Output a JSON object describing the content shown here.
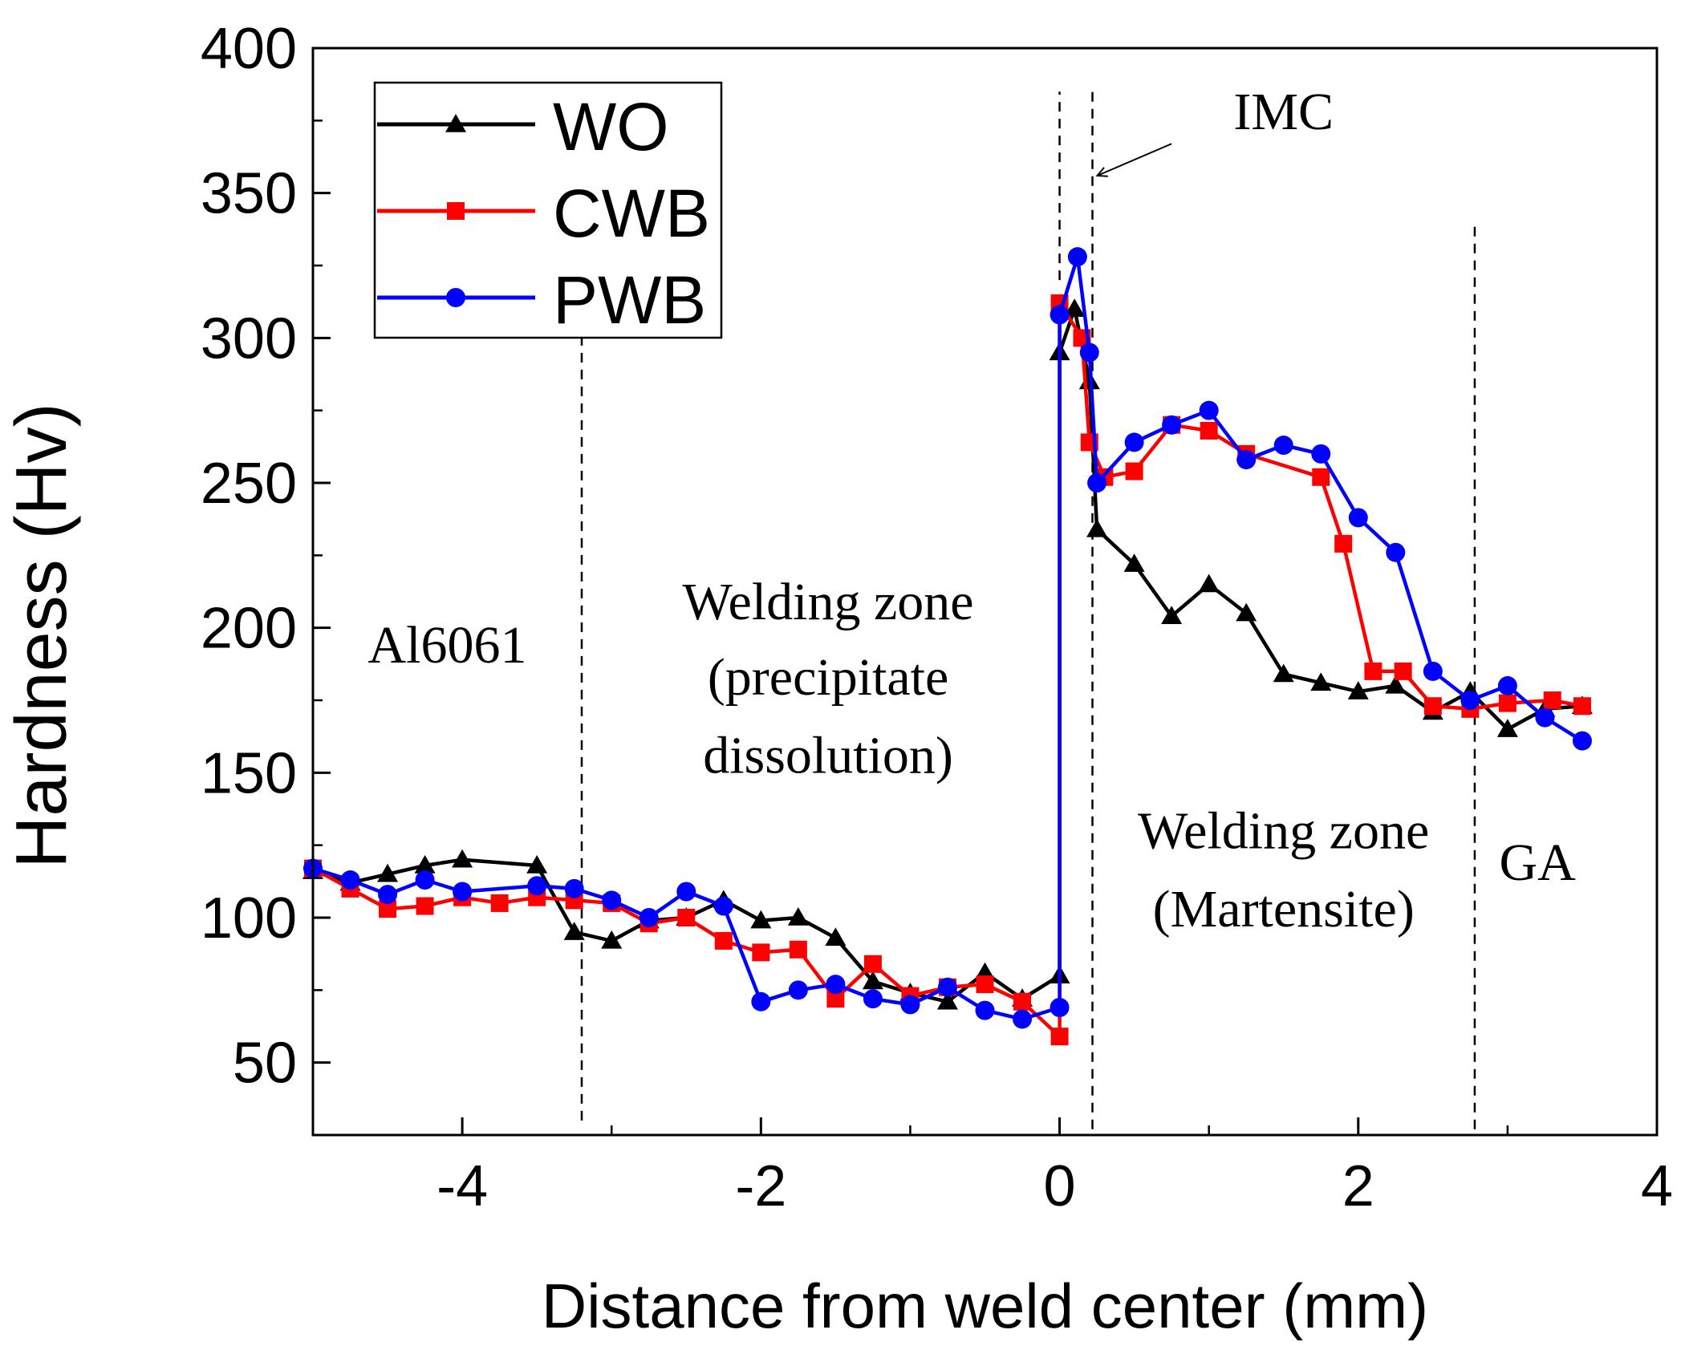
{
  "chart_data": {
    "type": "line",
    "xlabel": "Distance from weld center (mm)",
    "ylabel": "Hardness (Hv)",
    "xlim": [
      -5,
      4
    ],
    "ylim": [
      25,
      400
    ],
    "xticks": [
      -4,
      -2,
      0,
      2,
      4
    ],
    "yticks": [
      50,
      100,
      150,
      200,
      250,
      300,
      350,
      400
    ],
    "xtick_labels": [
      "-4",
      "-2",
      "0",
      "2",
      "4"
    ],
    "ytick_labels": [
      "50",
      "100",
      "150",
      "200",
      "250",
      "300",
      "350",
      "400"
    ],
    "legend_position": "top-left",
    "series": [
      {
        "name": "WO",
        "color": "#000000",
        "marker": "triangle",
        "points": [
          [
            -5,
            116
          ],
          [
            -4.75,
            112
          ],
          [
            -4.5,
            115
          ],
          [
            -4.25,
            118
          ],
          [
            -4,
            120
          ],
          [
            -3.5,
            118
          ],
          [
            -3.25,
            95
          ],
          [
            -3,
            92
          ],
          [
            -2.75,
            99
          ],
          [
            -2.5,
            100
          ],
          [
            -2.25,
            106
          ],
          [
            -2,
            99
          ],
          [
            -1.75,
            100
          ],
          [
            -1.5,
            93
          ],
          [
            -1.25,
            78
          ],
          [
            -1,
            74
          ],
          [
            -0.75,
            71
          ],
          [
            -0.5,
            81
          ],
          [
            -0.25,
            72
          ],
          [
            0,
            80
          ],
          [
            0,
            295
          ],
          [
            0.1,
            310
          ],
          [
            0.2,
            285
          ],
          [
            0.25,
            234
          ],
          [
            0.5,
            222
          ],
          [
            0.75,
            204
          ],
          [
            1,
            215
          ],
          [
            1.25,
            205
          ],
          [
            1.5,
            184
          ],
          [
            1.75,
            181
          ],
          [
            2,
            178
          ],
          [
            2.25,
            180
          ],
          [
            2.5,
            171
          ],
          [
            2.75,
            178
          ],
          [
            3,
            165
          ],
          [
            3.25,
            172
          ],
          [
            3.5,
            173
          ]
        ]
      },
      {
        "name": "CWB",
        "color": "#ff0000",
        "marker": "square",
        "points": [
          [
            -5,
            117
          ],
          [
            -4.75,
            110
          ],
          [
            -4.5,
            103
          ],
          [
            -4.25,
            104
          ],
          [
            -4,
            107
          ],
          [
            -3.75,
            105
          ],
          [
            -3.5,
            107
          ],
          [
            -3.25,
            106
          ],
          [
            -3,
            105
          ],
          [
            -2.75,
            98
          ],
          [
            -2.5,
            100
          ],
          [
            -2.25,
            92
          ],
          [
            -2,
            88
          ],
          [
            -1.75,
            89
          ],
          [
            -1.5,
            72
          ],
          [
            -1.25,
            84
          ],
          [
            -1,
            73
          ],
          [
            -0.75,
            76
          ],
          [
            -0.5,
            77
          ],
          [
            -0.25,
            71
          ],
          [
            0,
            59
          ],
          [
            0,
            312
          ],
          [
            0.15,
            300
          ],
          [
            0.2,
            264
          ],
          [
            0.3,
            252
          ],
          [
            0.5,
            254
          ],
          [
            0.75,
            270
          ],
          [
            1,
            268
          ],
          [
            1.25,
            260
          ],
          [
            1.75,
            252
          ],
          [
            1.9,
            229
          ],
          [
            2.1,
            185
          ],
          [
            2.3,
            185
          ],
          [
            2.5,
            173
          ],
          [
            2.75,
            172
          ],
          [
            3,
            174
          ],
          [
            3.3,
            175
          ],
          [
            3.5,
            173
          ]
        ]
      },
      {
        "name": "PWB",
        "color": "#0000ff",
        "marker": "circle",
        "points": [
          [
            -5,
            117
          ],
          [
            -4.75,
            113
          ],
          [
            -4.5,
            108
          ],
          [
            -4.25,
            113
          ],
          [
            -4,
            109
          ],
          [
            -3.5,
            111
          ],
          [
            -3.25,
            110
          ],
          [
            -3,
            106
          ],
          [
            -2.75,
            100
          ],
          [
            -2.5,
            109
          ],
          [
            -2.25,
            104
          ],
          [
            -2,
            71
          ],
          [
            -1.75,
            75
          ],
          [
            -1.5,
            77
          ],
          [
            -1.25,
            72
          ],
          [
            -1,
            70
          ],
          [
            -0.75,
            76
          ],
          [
            -0.5,
            68
          ],
          [
            -0.25,
            65
          ],
          [
            0,
            69
          ],
          [
            0,
            308
          ],
          [
            0.12,
            328
          ],
          [
            0.2,
            295
          ],
          [
            0.25,
            250
          ],
          [
            0.5,
            264
          ],
          [
            0.75,
            270
          ],
          [
            1,
            275
          ],
          [
            1.25,
            258
          ],
          [
            1.5,
            263
          ],
          [
            1.75,
            260
          ],
          [
            2,
            238
          ],
          [
            2.25,
            226
          ],
          [
            2.5,
            185
          ],
          [
            2.75,
            175
          ],
          [
            3,
            180
          ],
          [
            3.25,
            169
          ],
          [
            3.5,
            161
          ]
        ]
      }
    ],
    "annotations": [
      {
        "text": "IMC",
        "x": 1.5,
        "y": 372
      },
      {
        "text": "Al6061",
        "x": -4.1,
        "y": 188
      },
      {
        "text": "Welding zone",
        "x": -1.55,
        "y": 203
      },
      {
        "text": "(precipitate",
        "x": -1.55,
        "y": 177
      },
      {
        "text": "dissolution)",
        "x": -1.55,
        "y": 150
      },
      {
        "text": "Welding zone",
        "x": 1.5,
        "y": 124
      },
      {
        "text": "(Martensite)",
        "x": 1.5,
        "y": 97
      },
      {
        "text": "GA",
        "x": 3.2,
        "y": 113
      }
    ],
    "reference_lines": [
      {
        "x": -3.2,
        "y_from": 30,
        "y_to": 350
      },
      {
        "x": 0,
        "y_from": 320,
        "y_to": 385
      },
      {
        "x": 0.22,
        "y_from": 27,
        "y_to": 385
      },
      {
        "x": 2.78,
        "y_from": 27,
        "y_to": 340
      }
    ],
    "arrow": {
      "from": [
        0.75,
        367
      ],
      "to": [
        0.22,
        356
      ]
    }
  }
}
